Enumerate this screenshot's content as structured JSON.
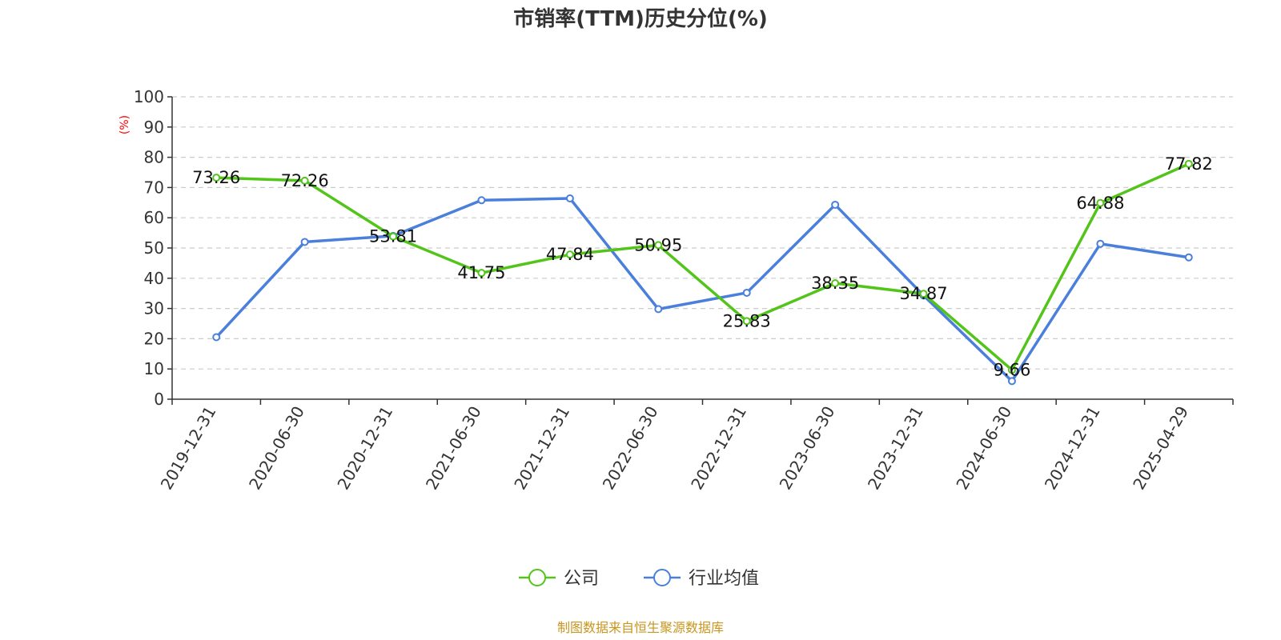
{
  "chart_data": {
    "type": "line",
    "title": "市销率(TTM)历史分位(%)",
    "ylabel": "(%)",
    "xlabel": "",
    "ylim": [
      0,
      100
    ],
    "yticks": [
      0,
      10,
      20,
      30,
      40,
      50,
      60,
      70,
      80,
      90,
      100
    ],
    "grid": true,
    "legend_position": "bottom",
    "categories": [
      "2019-12-31",
      "2020-06-30",
      "2020-12-31",
      "2021-06-30",
      "2021-12-31",
      "2022-06-30",
      "2022-12-31",
      "2023-06-30",
      "2023-12-31",
      "2024-06-30",
      "2024-12-31",
      "2025-04-29"
    ],
    "series": [
      {
        "name": "公司",
        "color": "#52c41a",
        "values": [
          73.26,
          72.26,
          53.81,
          41.75,
          47.84,
          50.95,
          25.83,
          38.35,
          34.87,
          9.66,
          64.88,
          77.82
        ],
        "labels": [
          "73.26",
          "72.26",
          "53.81",
          "41.75",
          "47.84",
          "50.95",
          "25.83",
          "38.35",
          "34.87",
          "9.66",
          "64.88",
          "77.82"
        ]
      },
      {
        "name": "行业均值",
        "color": "#4a7fdc",
        "values": [
          20.5,
          52.0,
          54.0,
          65.8,
          66.4,
          29.8,
          35.2,
          64.3,
          34.3,
          6.0,
          51.4,
          46.9
        ]
      }
    ]
  },
  "source": "制图数据来自恒生聚源数据库"
}
